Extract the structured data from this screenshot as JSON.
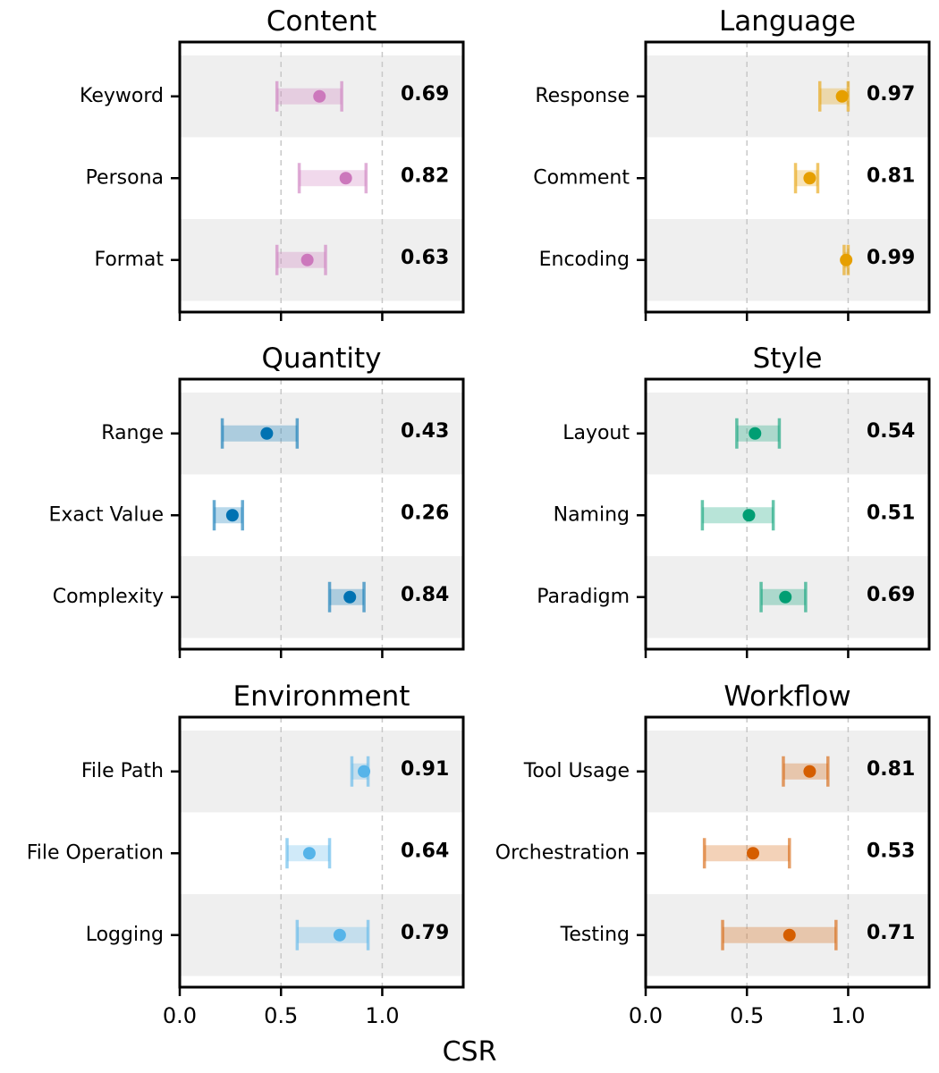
{
  "chart_data": {
    "type": "dot-interval",
    "xlabel": "CSR",
    "xlim": [
      0.0,
      1.4
    ],
    "xticks": [
      "0.0",
      "0.5",
      "1.0"
    ],
    "grid": "vertical dashed at 0.5 and 1.0",
    "panels": [
      {
        "title": "Content",
        "color": "#CC78BC",
        "rows": [
          {
            "label": "Keyword",
            "mean": 0.69,
            "low": 0.48,
            "high": 0.8,
            "value_label": "0.69"
          },
          {
            "label": "Persona",
            "mean": 0.82,
            "low": 0.59,
            "high": 0.92,
            "value_label": "0.82"
          },
          {
            "label": "Format",
            "mean": 0.63,
            "low": 0.48,
            "high": 0.72,
            "value_label": "0.63"
          }
        ]
      },
      {
        "title": "Language",
        "color": "#E69F00",
        "rows": [
          {
            "label": "Response",
            "mean": 0.97,
            "low": 0.86,
            "high": 1.0,
            "value_label": "0.97"
          },
          {
            "label": "Comment",
            "mean": 0.81,
            "low": 0.74,
            "high": 0.85,
            "value_label": "0.81"
          },
          {
            "label": "Encoding",
            "mean": 0.99,
            "low": 0.98,
            "high": 1.0,
            "value_label": "0.99"
          }
        ]
      },
      {
        "title": "Quantity",
        "color": "#0072B2",
        "rows": [
          {
            "label": "Range",
            "mean": 0.43,
            "low": 0.21,
            "high": 0.58,
            "value_label": "0.43"
          },
          {
            "label": "Exact Value",
            "mean": 0.26,
            "low": 0.17,
            "high": 0.31,
            "value_label": "0.26"
          },
          {
            "label": "Complexity",
            "mean": 0.84,
            "low": 0.74,
            "high": 0.91,
            "value_label": "0.84"
          }
        ]
      },
      {
        "title": "Style",
        "color": "#009E73",
        "rows": [
          {
            "label": "Layout",
            "mean": 0.54,
            "low": 0.45,
            "high": 0.66,
            "value_label": "0.54"
          },
          {
            "label": "Naming",
            "mean": 0.51,
            "low": 0.28,
            "high": 0.63,
            "value_label": "0.51"
          },
          {
            "label": "Paradigm",
            "mean": 0.69,
            "low": 0.57,
            "high": 0.79,
            "value_label": "0.69"
          }
        ]
      },
      {
        "title": "Environment",
        "color": "#56B4E9",
        "rows": [
          {
            "label": "File Path",
            "mean": 0.91,
            "low": 0.85,
            "high": 0.93,
            "value_label": "0.91"
          },
          {
            "label": "File Operation",
            "mean": 0.64,
            "low": 0.53,
            "high": 0.74,
            "value_label": "0.64"
          },
          {
            "label": "Logging",
            "mean": 0.79,
            "low": 0.58,
            "high": 0.93,
            "value_label": "0.79"
          }
        ]
      },
      {
        "title": "Workflow",
        "color": "#D55E00",
        "rows": [
          {
            "label": "Tool Usage",
            "mean": 0.81,
            "low": 0.68,
            "high": 0.9,
            "value_label": "0.81"
          },
          {
            "label": "Orchestration",
            "mean": 0.53,
            "low": 0.29,
            "high": 0.71,
            "value_label": "0.53"
          },
          {
            "label": "Testing",
            "mean": 0.71,
            "low": 0.38,
            "high": 0.94,
            "value_label": "0.71"
          }
        ]
      }
    ]
  }
}
